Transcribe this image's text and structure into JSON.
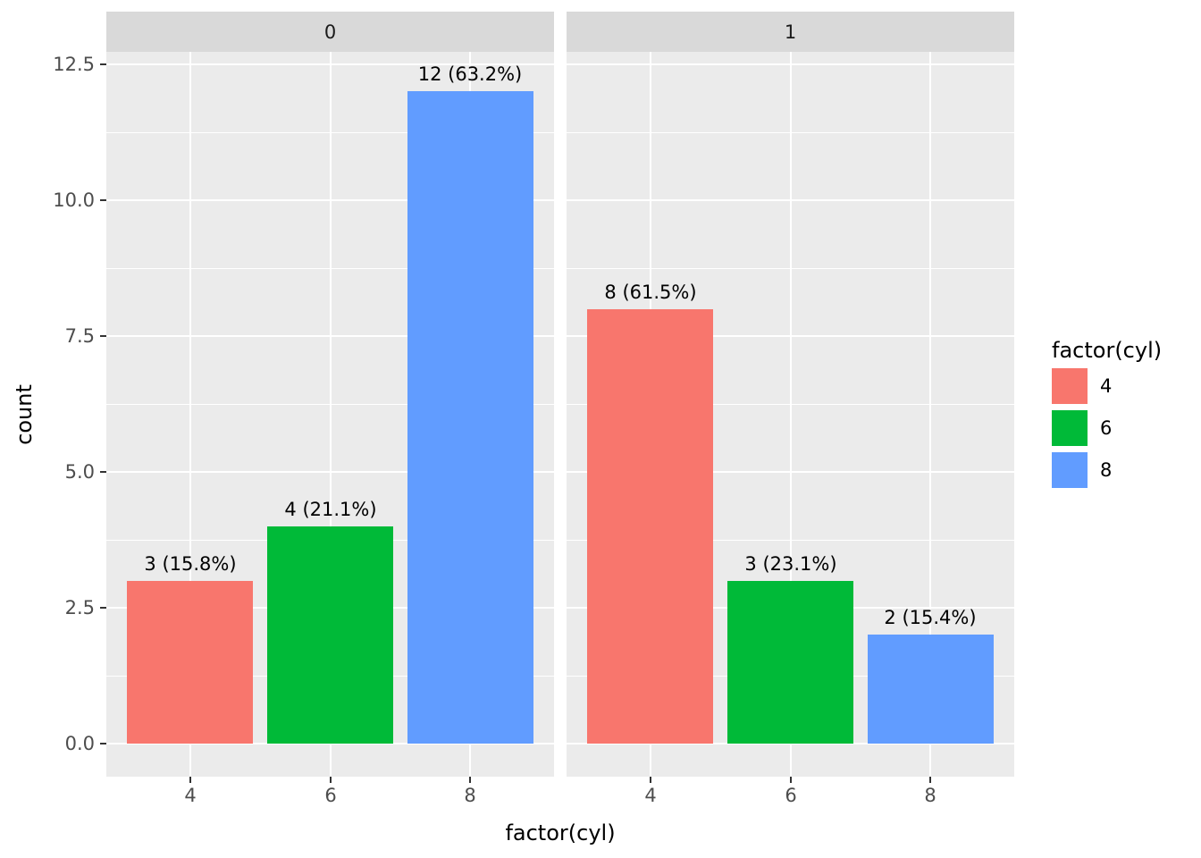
{
  "style": {
    "background": "#FFFFFF",
    "panel_background": "#EBEBEB",
    "strip_background": "#D9D9D9",
    "gridline_color": "#FFFFFF",
    "tick_mark_color": "#333333",
    "axis_text_color": "#4D4D4D",
    "title_text_color": "#000000",
    "strip_text_color": "#1A1A1A",
    "bar_label_color": "#000000"
  },
  "chart_data": {
    "type": "bar",
    "title": "",
    "xlabel": "factor(cyl)",
    "ylabel": "count",
    "categories": [
      "4",
      "6",
      "8"
    ],
    "ylim": [
      0,
      12.5
    ],
    "grid": "on",
    "legend_position": "right",
    "y_ticks": [
      {
        "label": "0.0",
        "value": 0
      },
      {
        "label": "2.5",
        "value": 2.5
      },
      {
        "label": "5.0",
        "value": 5
      },
      {
        "label": "7.5",
        "value": 7.5
      },
      {
        "label": "10.0",
        "value": 10
      },
      {
        "label": "12.5",
        "value": 12.5
      }
    ],
    "facets": [
      {
        "label": "0",
        "bars": [
          {
            "category": "4",
            "value": 3,
            "label": "3 (15.8%)",
            "color": "#F8766D"
          },
          {
            "category": "6",
            "value": 4,
            "label": "4 (21.1%)",
            "color": "#00BA38"
          },
          {
            "category": "8",
            "value": 12,
            "label": "12 (63.2%)",
            "color": "#619CFF"
          }
        ]
      },
      {
        "label": "1",
        "bars": [
          {
            "category": "4",
            "value": 8,
            "label": "8 (61.5%)",
            "color": "#F8766D"
          },
          {
            "category": "6",
            "value": 3,
            "label": "3 (23.1%)",
            "color": "#00BA38"
          },
          {
            "category": "8",
            "value": 2,
            "label": "2 (15.4%)",
            "color": "#619CFF"
          }
        ]
      }
    ],
    "legend": {
      "title": "factor(cyl)",
      "entries": [
        {
          "label": "4",
          "color": "#F8766D"
        },
        {
          "label": "6",
          "color": "#00BA38"
        },
        {
          "label": "8",
          "color": "#619CFF"
        }
      ]
    }
  }
}
